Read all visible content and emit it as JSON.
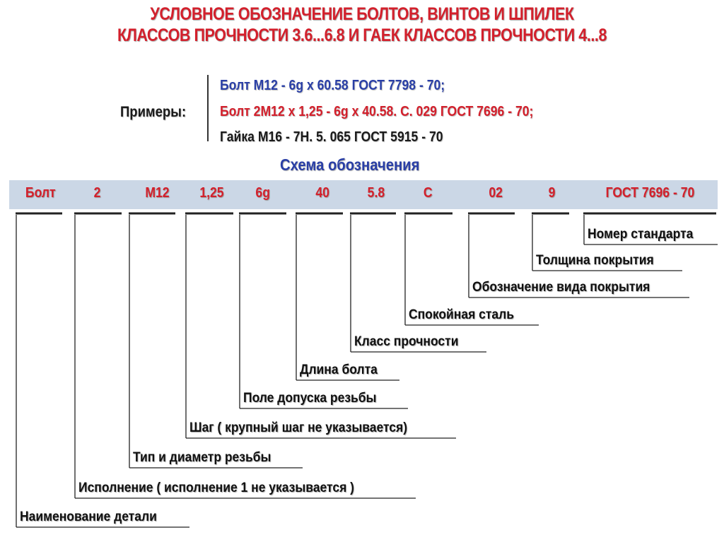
{
  "title": {
    "line1": "УСЛОВНОЕ  ОБОЗНАЧЕНИЕ  БОЛТОВ,  ВИНТОВ  И  ШПИЛЕК",
    "line2": "КЛАССОВ  ПРОЧНОСТИ  3.6...6.8  И  ГАЕК  КЛАССОВ  ПРОЧНОСТИ  4...8"
  },
  "examples": {
    "label": "Примеры:",
    "items": [
      {
        "text": "Болт М12 - 6g x 60.58  ГОСТ 7798 - 70;",
        "color": "#2a3fa6"
      },
      {
        "text": "Болт 2М12 x 1,25 - 6g x 40.58. С. 029  ГОСТ 7696 - 70;",
        "color": "#d3202c"
      },
      {
        "text": "Гайка М16 - 7Н. 5. 065  ГОСТ 5915 - 70",
        "color": "#1a1a1a"
      }
    ]
  },
  "scheme": {
    "title": "Схема обозначения",
    "fields": [
      {
        "code": "Болт",
        "meaning": "Наименование детали"
      },
      {
        "code": "2",
        "meaning": "Исполнение ( исполнение 1 не указывается )"
      },
      {
        "code": "М12",
        "meaning": "Тип и диаметр резьбы"
      },
      {
        "code": "1,25",
        "meaning": "Шаг ( крупный шаг не указывается)"
      },
      {
        "code": "6g",
        "meaning": "Поле допуска резьбы"
      },
      {
        "code": "40",
        "meaning": "Длина болта"
      },
      {
        "code": "5.8",
        "meaning": "Класс прочности"
      },
      {
        "code": "С",
        "meaning": "Спокойная сталь"
      },
      {
        "code": "02",
        "meaning": "Обозначение вида покрытия"
      },
      {
        "code": "9",
        "meaning": "Толщина покрытия"
      },
      {
        "code": "ГОСТ 7696 - 70",
        "meaning": "Номер стандарта"
      }
    ]
  },
  "colors": {
    "title": "#d3202c",
    "bar": "#cbd7e6",
    "scheme_title": "#2a3fa6"
  }
}
